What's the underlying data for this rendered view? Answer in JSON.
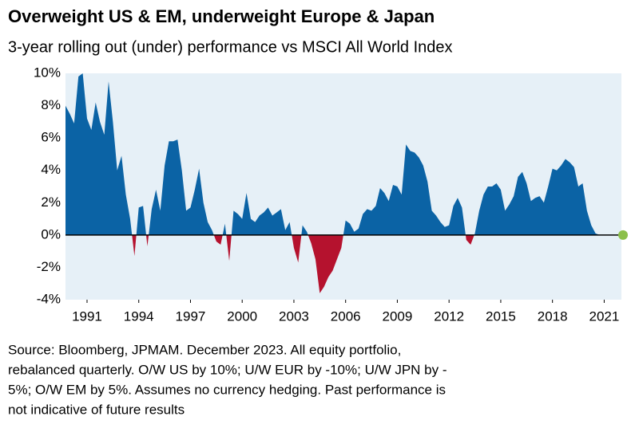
{
  "chart_data": {
    "type": "area",
    "title": "Overweight US & EM, underweight Europe & Japan",
    "subtitle": "3-year rolling out (under) performance vs MSCI All World Index",
    "footnote_lines": [
      "Source: Bloomberg, JPMAM. December 2023. All equity portfolio,",
      "rebalanced quarterly.  O/W US by 10%; U/W EUR by -10%; U/W JPN by -",
      "5%; O/W EM by 5%.  Assumes no currency hedging. Past performance is",
      "not indicative of future results"
    ],
    "color": "#0b63a5",
    "negative_color": "#b5122e",
    "xlim": [
      1989.75,
      2022
    ],
    "ylim": [
      -4,
      10
    ],
    "xticks": [
      1991,
      1994,
      1997,
      2000,
      2003,
      2006,
      2009,
      2012,
      2015,
      2018,
      2021
    ],
    "yticks": [
      {
        "value": -4,
        "label": "-4%"
      },
      {
        "value": -2,
        "label": "-2%"
      },
      {
        "value": 0,
        "label": "0%"
      },
      {
        "value": 2,
        "label": "2%"
      },
      {
        "value": 4,
        "label": "4%"
      },
      {
        "value": 6,
        "label": "6%"
      },
      {
        "value": 8,
        "label": "8%"
      },
      {
        "value": 10,
        "label": "10%"
      }
    ],
    "x": [
      1989.75,
      1990,
      1990.25,
      1990.5,
      1990.75,
      1991,
      1991.25,
      1991.5,
      1991.75,
      1992,
      1992.25,
      1992.5,
      1992.75,
      1993,
      1993.25,
      1993.5,
      1993.75,
      1994,
      1994.25,
      1994.5,
      1994.75,
      1995,
      1995.25,
      1995.5,
      1995.75,
      1996,
      1996.25,
      1996.5,
      1996.75,
      1997,
      1997.25,
      1997.5,
      1997.75,
      1998,
      1998.25,
      1998.5,
      1998.75,
      1999,
      1999.25,
      1999.5,
      1999.75,
      2000,
      2000.25,
      2000.5,
      2000.75,
      2001,
      2001.25,
      2001.5,
      2001.75,
      2002,
      2002.25,
      2002.5,
      2002.75,
      2003,
      2003.25,
      2003.5,
      2003.75,
      2004,
      2004.25,
      2004.5,
      2004.75,
      2005,
      2005.25,
      2005.5,
      2005.75,
      2006,
      2006.25,
      2006.5,
      2006.75,
      2007,
      2007.25,
      2007.5,
      2007.75,
      2008,
      2008.25,
      2008.5,
      2008.75,
      2009,
      2009.25,
      2009.5,
      2009.75,
      2010,
      2010.25,
      2010.5,
      2010.75,
      2011,
      2011.25,
      2011.5,
      2011.75,
      2012,
      2012.25,
      2012.5,
      2012.75,
      2013,
      2013.25,
      2013.5,
      2013.75,
      2014,
      2014.25,
      2014.5,
      2014.75,
      2015,
      2015.25,
      2015.5,
      2015.75,
      2016,
      2016.25,
      2016.5,
      2016.75,
      2017,
      2017.25,
      2017.5,
      2017.75,
      2018,
      2018.25,
      2018.5,
      2018.75,
      2019,
      2019.25,
      2019.5,
      2019.75,
      2020,
      2020.25,
      2020.5,
      2020.75
    ],
    "values": [
      8,
      7.5,
      6.9,
      9.8,
      10,
      7.2,
      6.5,
      8.2,
      7,
      6.2,
      9.5,
      7,
      4,
      4.9,
      2.5,
      1,
      -1.3,
      1.7,
      1.8,
      -0.7,
      1.6,
      2.8,
      1.5,
      4.3,
      5.8,
      5.8,
      5.9,
      4,
      1.5,
      1.7,
      2.8,
      4.1,
      2,
      0.8,
      0.3,
      -0.4,
      -0.6,
      0.7,
      -1.6,
      1.5,
      1.3,
      1,
      2.6,
      1,
      0.8,
      1.2,
      1.4,
      1.7,
      1.2,
      1.4,
      1.6,
      0.3,
      0.8,
      -0.8,
      -1.7,
      0.6,
      0.2,
      -0.5,
      -1.5,
      -3.6,
      -3.2,
      -2.6,
      -2.2,
      -1.5,
      -0.8,
      0.9,
      0.7,
      0.2,
      0.4,
      1.3,
      1.6,
      1.5,
      1.8,
      2.9,
      2.6,
      2.1,
      3.1,
      3,
      2.5,
      5.6,
      5.2,
      5.1,
      4.8,
      4.3,
      3.3,
      1.5,
      1.2,
      0.8,
      0.5,
      0.6,
      1.8,
      2.3,
      1.7,
      -0.3,
      -0.6,
      0.1,
      1.5,
      2.5,
      3,
      3,
      3.2,
      2.8,
      1.5,
      1.9,
      2.4,
      3.6,
      3.9,
      3.2,
      2.1,
      2.3,
      2.4,
      2,
      3,
      4.1,
      4,
      4.3,
      4.7,
      4.5,
      4.2,
      3,
      3.2,
      1.5,
      0.6,
      0.1,
      0
    ]
  }
}
